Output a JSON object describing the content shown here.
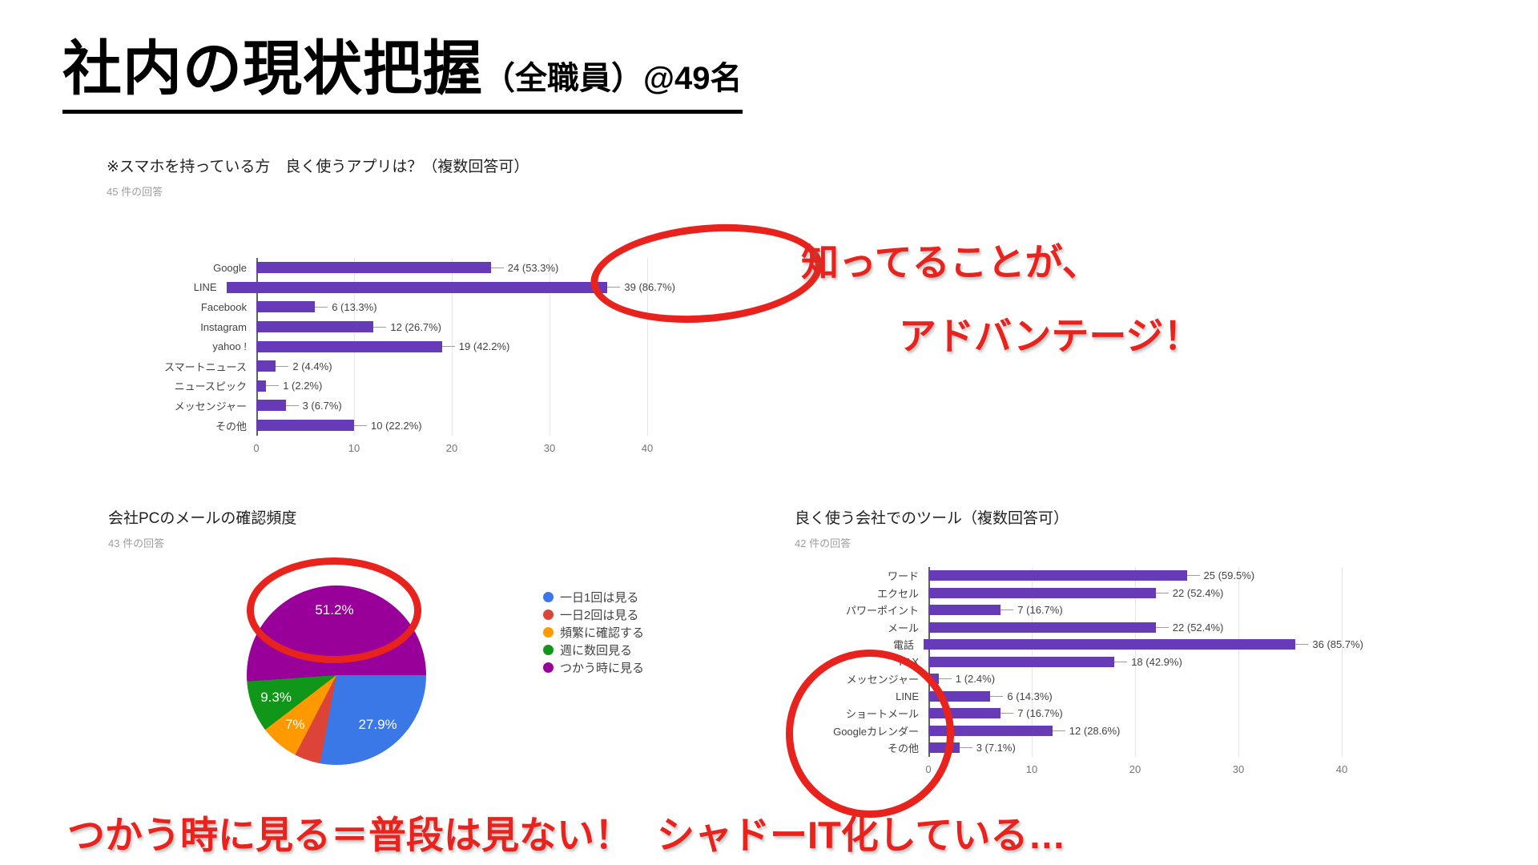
{
  "slide": {
    "title_main": "社内の現状把握",
    "title_sub": "（全職員）@49名"
  },
  "colors": {
    "bar_purple": "#673ab7",
    "annotation_red": "#e8231d",
    "grid_gray": "#e6e6e6",
    "axis_gray": "#616161"
  },
  "annotations": {
    "advantage_line1": "知ってることが、",
    "advantage_line2": "アドバンテージ！",
    "bottom_left": "つかう時に見る＝普段は見ない！",
    "bottom_right": "シャドーIT化している…",
    "ellipse_1": "circle-around-LINE-bar-value",
    "ellipse_2": "circle-around-pie-51.2-slice",
    "ellipse_3": "circle-around-tool-chart-lower-labels"
  },
  "chart_data": [
    {
      "type": "bar",
      "orientation": "horizontal",
      "title": "※スマホを持っている方　良く使うアプリは？（複数回答可）",
      "subtitle": "45 件の回答",
      "categories": [
        "Google",
        "LINE",
        "Facebook",
        "Instagram",
        "yahoo !",
        "スマートニュース",
        "ニュースピック",
        "メッセンジャー",
        "その他"
      ],
      "values": [
        24,
        39,
        6,
        12,
        19,
        2,
        1,
        3,
        10
      ],
      "pcts": [
        "53.3%",
        "86.7%",
        "13.3%",
        "26.7%",
        "42.2%",
        "4.4%",
        "2.2%",
        "6.7%",
        "22.2%"
      ],
      "x_ticks": [
        0,
        10,
        20,
        30,
        40
      ],
      "xlim": [
        0,
        42
      ],
      "bar_color": "#673ab7",
      "grid": true,
      "legend_position": "none"
    },
    {
      "type": "pie",
      "title": "会社PCのメールの確認頻度",
      "subtitle": "43 件の回答",
      "start_angle_deg": 90,
      "direction": "clockwise",
      "legend_position": "right",
      "slices": [
        {
          "label": "一日1回は見る",
          "pct": 27.9,
          "display": "27.9%",
          "color": "#3b78e7"
        },
        {
          "label": "一日2回は見る",
          "pct": 4.7,
          "display": "",
          "color": "#db4437"
        },
        {
          "label": "頻繁に確認する",
          "pct": 7.0,
          "display": "7%",
          "color": "#ff9900"
        },
        {
          "label": "週に数回見る",
          "pct": 9.3,
          "display": "9.3%",
          "color": "#109618"
        },
        {
          "label": "つかう時に見る",
          "pct": 51.2,
          "display": "51.2%",
          "color": "#990099"
        }
      ]
    },
    {
      "type": "bar",
      "orientation": "horizontal",
      "title": "良く使う会社でのツール（複数回答可）",
      "subtitle": "42 件の回答",
      "categories": [
        "ワード",
        "エクセル",
        "パワーポイント",
        "メール",
        "電話",
        "FAX",
        "メッセンジャー",
        "LINE",
        "ショートメール",
        "Googleカレンダー",
        "その他"
      ],
      "values": [
        25,
        22,
        7,
        22,
        36,
        18,
        1,
        6,
        7,
        12,
        3
      ],
      "pcts": [
        "59.5%",
        "52.4%",
        "16.7%",
        "52.4%",
        "85.7%",
        "42.9%",
        "2.4%",
        "14.3%",
        "16.7%",
        "28.6%",
        "7.1%"
      ],
      "x_ticks": [
        0,
        10,
        20,
        30,
        40
      ],
      "xlim": [
        0,
        41
      ],
      "bar_color": "#673ab7",
      "grid": true,
      "legend_position": "none"
    }
  ]
}
